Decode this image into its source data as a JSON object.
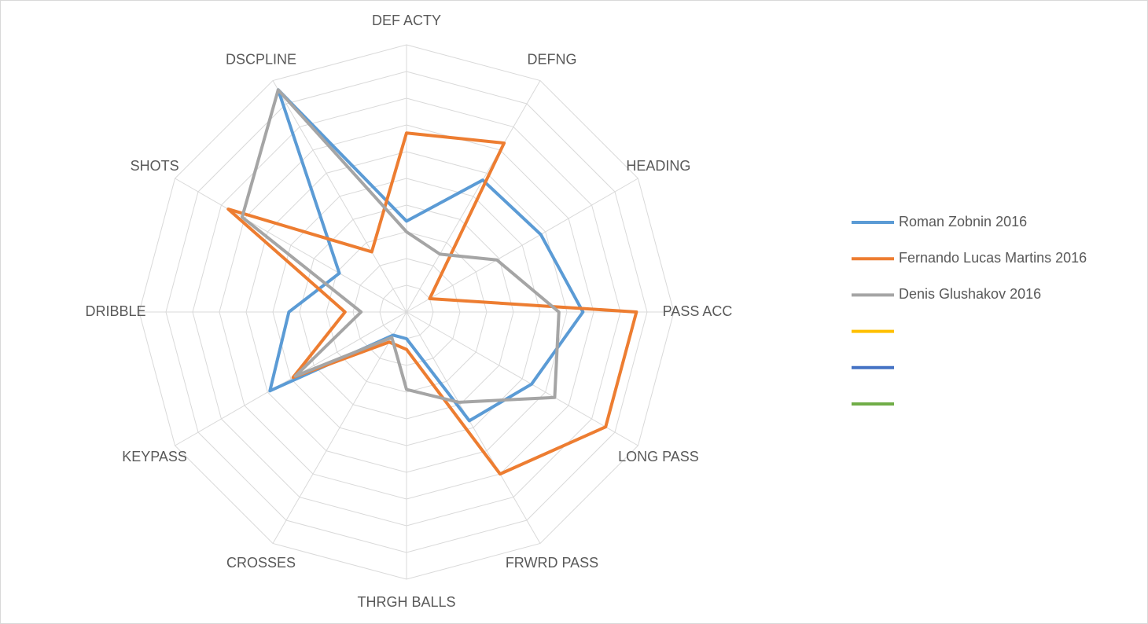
{
  "chart_data": {
    "type": "radar",
    "categories": [
      "DEF ACTY",
      "DEFNG",
      "HEADING",
      "PASS ACC",
      "LONG PASS",
      "FRWRD PASS",
      "THRGH BALLS",
      "CROSSES",
      "KEYPASS",
      "DRIBBLE",
      "SHOTS",
      "DSCPLINE"
    ],
    "series": [
      {
        "name": "Roman Zobnin 2016",
        "color": "#5b9bd5",
        "values": [
          3.4,
          5.7,
          5.8,
          6.6,
          5.4,
          4.7,
          1.0,
          1.0,
          5.9,
          4.4,
          2.9,
          9.6
        ]
      },
      {
        "name": "Fernando Lucas Martins 2016",
        "color": "#ed7d31",
        "values": [
          6.7,
          7.3,
          1.0,
          8.6,
          8.6,
          7.0,
          1.4,
          1.3,
          4.9,
          2.3,
          7.7,
          2.6
        ]
      },
      {
        "name": "Denis Glushakov 2016",
        "color": "#a5a5a5",
        "values": [
          3.0,
          2.5,
          3.9,
          5.7,
          6.4,
          3.9,
          2.9,
          1.1,
          4.8,
          1.7,
          7.1,
          9.6
        ]
      },
      {
        "name": null,
        "color": "#ffc000",
        "values": [
          null,
          null,
          null,
          null,
          null,
          null,
          null,
          null,
          null,
          null,
          null,
          null
        ]
      },
      {
        "name": null,
        "color": "#4472c4",
        "values": [
          null,
          null,
          null,
          null,
          null,
          null,
          null,
          null,
          null,
          null,
          null,
          null
        ]
      },
      {
        "name": null,
        "color": "#70ad47",
        "values": [
          null,
          null,
          null,
          null,
          null,
          null,
          null,
          null,
          null,
          null,
          null,
          null
        ]
      }
    ],
    "rlim": [
      0,
      10
    ],
    "rticks": [
      1,
      2,
      3,
      4,
      5,
      6,
      7,
      8,
      9,
      10
    ],
    "grid": true,
    "legend": "right"
  }
}
